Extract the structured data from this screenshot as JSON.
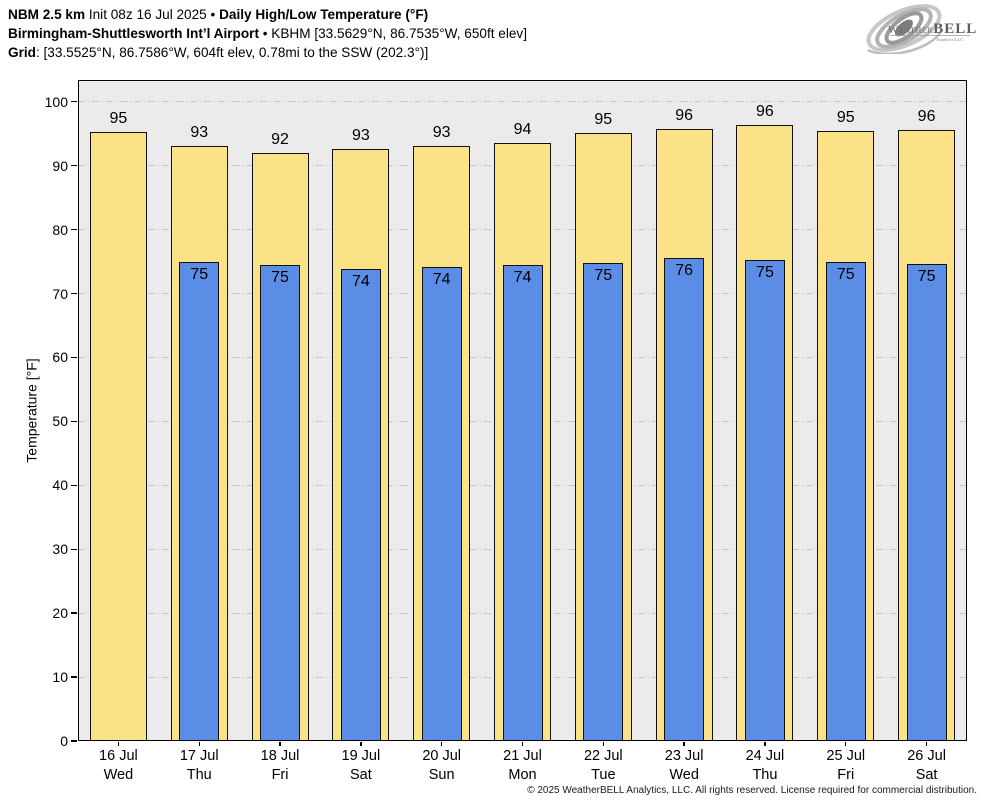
{
  "header": {
    "line1_bold1": "NBM 2.5 km",
    "line1_regular": " Init 08z 16 Jul 2025 • ",
    "line1_bold2": "Daily High/Low Temperature (°F)",
    "line2_bold": "Birmingham-Shuttlesworth Int’l Airport",
    "line2_regular": " • KBHM [33.5629°N, 86.7535°W, 650ft elev]",
    "line3_bold": "Grid",
    "line3_regular": ": [33.5525°N, 86.7586°W, 604ft elev, 0.78mi to the SSW (202.3°)]"
  },
  "logo": {
    "brand_weather": "Weather",
    "brand_bell": "BELL",
    "subtext": "Analytics LLC"
  },
  "chart_data": {
    "type": "bar",
    "title": "Daily High/Low Temperature (°F)",
    "ylabel": "Temperature [°F]",
    "ylim": [
      0,
      103.4
    ],
    "yticks": [
      0,
      10,
      20,
      30,
      40,
      50,
      60,
      70,
      80,
      90,
      100
    ],
    "grid": "horizontal dash-dot",
    "legend": "none",
    "plot_bg": "#ebebeb",
    "categories": [
      {
        "date": "16 Jul",
        "weekday": "Wed"
      },
      {
        "date": "17 Jul",
        "weekday": "Thu"
      },
      {
        "date": "18 Jul",
        "weekday": "Fri"
      },
      {
        "date": "19 Jul",
        "weekday": "Sat"
      },
      {
        "date": "20 Jul",
        "weekday": "Sun"
      },
      {
        "date": "21 Jul",
        "weekday": "Mon"
      },
      {
        "date": "22 Jul",
        "weekday": "Tue"
      },
      {
        "date": "23 Jul",
        "weekday": "Wed"
      },
      {
        "date": "24 Jul",
        "weekday": "Thu"
      },
      {
        "date": "25 Jul",
        "weekday": "Fri"
      },
      {
        "date": "26 Jul",
        "weekday": "Sat"
      }
    ],
    "series": [
      {
        "name": "Daily High",
        "color": "#fbe287",
        "values": [
          95.2,
          93.1,
          92.0,
          92.6,
          93.1,
          93.5,
          95.1,
          95.8,
          96.4,
          95.4,
          95.6
        ],
        "labels": [
          "95",
          "93",
          "92",
          "93",
          "93",
          "94",
          "95",
          "96",
          "96",
          "95",
          "96"
        ]
      },
      {
        "name": "Daily Low",
        "color": "#5c8de6",
        "values": [
          null,
          74.9,
          74.5,
          73.8,
          74.2,
          74.4,
          74.7,
          75.6,
          75.3,
          75.0,
          74.6
        ],
        "labels": [
          null,
          "75",
          "75",
          "74",
          "74",
          "74",
          "75",
          "76",
          "75",
          "75",
          "75"
        ]
      }
    ]
  },
  "footer": {
    "copyright": "© 2025 WeatherBELL Analytics, LLC. All rights reserved. License required for commercial distribution."
  }
}
